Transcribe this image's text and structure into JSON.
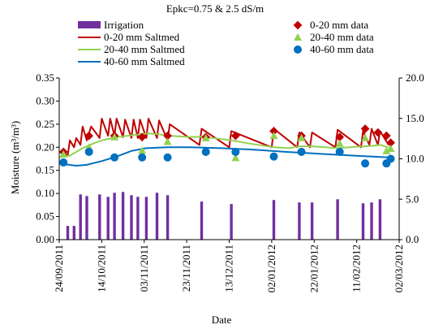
{
  "chart_data": {
    "type": "line",
    "title": "Epkc=0.75 & 2.5 dS/m",
    "xlabel": "Date",
    "ylabel": "Moisture (m³/m³)",
    "x_ticks": [
      "24/09/2011",
      "14/10/2011",
      "03/11/2011",
      "23/11/2011",
      "13/12/2011",
      "02/01/2012",
      "22/01/2012",
      "11/02/2012",
      "02/03/2012"
    ],
    "x_range": [
      "24/09/2011",
      "02/03/2012"
    ],
    "y_left": {
      "range": [
        0,
        0.35
      ],
      "ticks": [
        "0.00",
        "0.05",
        "0.10",
        "0.15",
        "0.20",
        "0.25",
        "0.30",
        "0.35"
      ]
    },
    "y_right": {
      "range": [
        0,
        20
      ],
      "ticks": [
        "0.0",
        "5.0",
        "10.0",
        "15.0",
        "20.0"
      ]
    },
    "legend": {
      "placement": "top",
      "entries": [
        {
          "key": "irrigation",
          "label": "Irrigation"
        },
        {
          "key": "d0_20",
          "label": "0-20 mm data"
        },
        {
          "key": "s0_20",
          "label": "0-20 mm Saltmed"
        },
        {
          "key": "d20_40",
          "label": "20-40 mm data"
        },
        {
          "key": "s20_40",
          "label": "20-40 mm Saltmed"
        },
        {
          "key": "d40_60",
          "label": "40-60 mm data"
        },
        {
          "key": "s40_60",
          "label": "40-60 mm Saltmed"
        }
      ]
    },
    "colors": {
      "irrigation": "#7030a0",
      "s0_20": "#c00000",
      "s20_40": "#92d050",
      "s40_60": "#0070c0",
      "d0_20": "#c00000",
      "d20_40": "#92d050",
      "d40_60": "#0070c0"
    },
    "irrigation": [
      {
        "date": "28/09/2011",
        "value": 1.7
      },
      {
        "date": "01/10/2011",
        "value": 1.7
      },
      {
        "date": "04/10/2011",
        "value": 5.6
      },
      {
        "date": "07/10/2011",
        "value": 5.4
      },
      {
        "date": "13/10/2011",
        "value": 5.6
      },
      {
        "date": "17/10/2011",
        "value": 5.3
      },
      {
        "date": "20/10/2011",
        "value": 5.8
      },
      {
        "date": "24/10/2011",
        "value": 5.9
      },
      {
        "date": "28/10/2011",
        "value": 5.5
      },
      {
        "date": "31/10/2011",
        "value": 5.3
      },
      {
        "date": "04/11/2011",
        "value": 5.3
      },
      {
        "date": "09/11/2011",
        "value": 5.8
      },
      {
        "date": "14/11/2011",
        "value": 5.5
      },
      {
        "date": "30/11/2011",
        "value": 4.7
      },
      {
        "date": "14/12/2011",
        "value": 4.4
      },
      {
        "date": "03/01/2012",
        "value": 4.9
      },
      {
        "date": "15/01/2012",
        "value": 4.6
      },
      {
        "date": "21/01/2012",
        "value": 4.6
      },
      {
        "date": "02/02/2012",
        "value": 5.0
      },
      {
        "date": "14/02/2012",
        "value": 4.5
      },
      {
        "date": "18/02/2012",
        "value": 4.6
      },
      {
        "date": "22/02/2012",
        "value": 5.0
      }
    ],
    "series": [
      {
        "key": "s0_20",
        "x": [
          "24/09/2011",
          "28/09/2011",
          "29/09/2011",
          "01/10/2011",
          "02/10/2011",
          "04/10/2011",
          "05/10/2011",
          "07/10/2011",
          "09/10/2011",
          "13/10/2011",
          "14/10/2011",
          "17/10/2011",
          "18/10/2011",
          "20/10/2011",
          "21/10/2011",
          "24/10/2011",
          "25/10/2011",
          "28/10/2011",
          "29/10/2011",
          "31/10/2011",
          "01/11/2011",
          "04/11/2011",
          "05/11/2011",
          "09/11/2011",
          "10/11/2011",
          "14/11/2011",
          "15/11/2011",
          "29/11/2011",
          "30/11/2011",
          "13/12/2011",
          "14/12/2011",
          "02/01/2012",
          "03/01/2012",
          "14/01/2012",
          "15/01/2012",
          "20/01/2012",
          "21/01/2012",
          "01/02/2012",
          "02/02/2012",
          "13/02/2012",
          "14/02/2012",
          "17/02/2012",
          "18/02/2012",
          "21/02/2012",
          "22/02/2012",
          "26/02/2012"
        ],
        "y": [
          0.19,
          0.183,
          0.215,
          0.2,
          0.22,
          0.205,
          0.245,
          0.215,
          0.245,
          0.22,
          0.262,
          0.225,
          0.262,
          0.225,
          0.262,
          0.222,
          0.26,
          0.22,
          0.26,
          0.22,
          0.26,
          0.22,
          0.262,
          0.22,
          0.258,
          0.215,
          0.25,
          0.205,
          0.24,
          0.2,
          0.235,
          0.2,
          0.24,
          0.2,
          0.232,
          0.2,
          0.232,
          0.2,
          0.238,
          0.2,
          0.235,
          0.205,
          0.24,
          0.205,
          0.235,
          0.205
        ]
      },
      {
        "key": "s20_40",
        "x": [
          "24/09/2011",
          "29/09/2011",
          "02/10/2011",
          "05/10/2011",
          "10/10/2011",
          "14/10/2011",
          "21/10/2011",
          "01/11/2011",
          "05/11/2011",
          "10/11/2011",
          "15/11/2011",
          "25/11/2011",
          "30/11/2011",
          "14/12/2011",
          "24/12/2011",
          "03/01/2012",
          "10/01/2012",
          "15/01/2012",
          "21/01/2012",
          "02/02/2012",
          "14/02/2012",
          "18/02/2012",
          "22/02/2012",
          "26/02/2012"
        ],
        "y": [
          0.178,
          0.182,
          0.19,
          0.198,
          0.208,
          0.215,
          0.222,
          0.228,
          0.23,
          0.228,
          0.225,
          0.222,
          0.223,
          0.215,
          0.207,
          0.2,
          0.198,
          0.202,
          0.202,
          0.198,
          0.202,
          0.203,
          0.205,
          0.2
        ]
      },
      {
        "key": "s40_60",
        "x": [
          "24/09/2011",
          "02/10/2011",
          "07/10/2011",
          "14/10/2011",
          "21/10/2011",
          "28/10/2011",
          "04/11/2011",
          "14/11/2011",
          "24/11/2011",
          "09/12/2011",
          "24/12/2011",
          "09/01/2012",
          "24/01/2012",
          "09/02/2012",
          "26/02/2012"
        ],
        "y": [
          0.165,
          0.16,
          0.162,
          0.17,
          0.18,
          0.192,
          0.198,
          0.2,
          0.2,
          0.198,
          0.195,
          0.19,
          0.186,
          0.182,
          0.178
        ]
      },
      {
        "key": "d0_20",
        "x": [
          "26/09/2011",
          "08/10/2011",
          "20/10/2011",
          "02/11/2011",
          "14/11/2011",
          "02/12/2011",
          "16/12/2011",
          "03/01/2012",
          "16/01/2012",
          "03/02/2012",
          "15/02/2012",
          "21/02/2012",
          "25/02/2012",
          "27/02/2012"
        ],
        "y": [
          0.19,
          0.225,
          0.225,
          0.222,
          0.225,
          0.222,
          0.225,
          0.235,
          0.225,
          0.222,
          0.24,
          0.232,
          0.225,
          0.21
        ]
      },
      {
        "key": "d20_40",
        "x": [
          "26/09/2011",
          "08/10/2011",
          "20/10/2011",
          "02/11/2011",
          "14/11/2011",
          "02/12/2011",
          "16/12/2011",
          "03/01/2012",
          "16/01/2012",
          "03/02/2012",
          "15/02/2012",
          "25/02/2012",
          "27/02/2012"
        ],
        "y": [
          0.185,
          0.2,
          0.222,
          0.193,
          0.212,
          0.22,
          0.177,
          0.225,
          0.22,
          0.208,
          0.22,
          0.192,
          0.197
        ]
      },
      {
        "key": "d40_60",
        "x": [
          "26/09/2011",
          "08/10/2011",
          "20/10/2011",
          "02/11/2011",
          "14/11/2011",
          "02/12/2011",
          "16/12/2011",
          "03/01/2012",
          "16/01/2012",
          "03/02/2012",
          "15/02/2012",
          "25/02/2012",
          "27/02/2012"
        ],
        "y": [
          0.167,
          0.19,
          0.178,
          0.178,
          0.178,
          0.19,
          0.19,
          0.18,
          0.19,
          0.19,
          0.165,
          0.165,
          0.175
        ]
      }
    ]
  }
}
